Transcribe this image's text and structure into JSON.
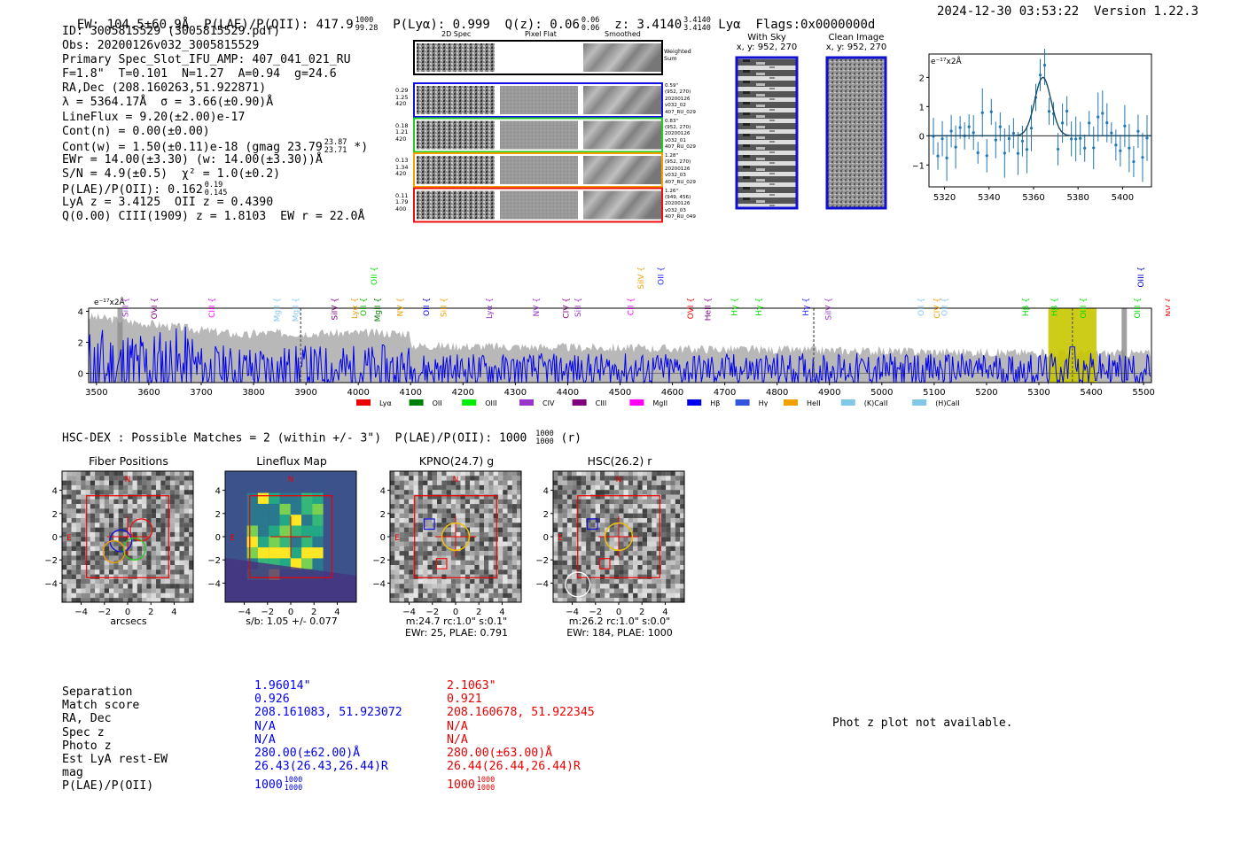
{
  "header": {
    "ew": "EW: 104.5±60.9Å",
    "plae_label": "P(LAE)/P(OII): 417.9",
    "plae_hi": "1000",
    "plae_lo": "99.28",
    "plya": "P(Lyα): 0.999",
    "qz_label": "Q(z): 0.06",
    "qz_hi": "0.06",
    "qz_lo": "0.06",
    "z_label": "z: 3.4140",
    "z_hi": "3.4140",
    "z_lo": "3.4140",
    "z_line": "Lyα",
    "flags": "Flags:0x0000000d",
    "timestamp": "2024-12-30 03:53:22",
    "version": "Version 1.22.3"
  },
  "info": {
    "id": "ID: 3005815529 (3005815529.pdf)",
    "obs": "Obs: 20200126v032_3005815529",
    "primary": "Primary Spec_Slot_IFU_AMP: 407_041_021_RU",
    "fparams": "F=1.8\"  T=0.101  N=1.27  A=0.94  g=24.6",
    "radec": "RA,Dec (208.160263,51.922871)",
    "lambda": "λ = 5364.17Å  σ = 3.66(±0.90)Å",
    "lineflux": "LineFlux = 9.20(±2.00)e-17",
    "contn": "Cont(n) = 0.00(±0.00)",
    "contw_a": "Cont(w) = 1.50(±0.11)e-18 (gmag 23.79",
    "contw_hi": "23.87",
    "contw_lo": "23.71",
    "contw_b": " *)",
    "ewr": "EWr = 14.00(±3.30) (w: 14.00(±3.30))Å",
    "sn": "S/N = 4.9(±0.5)  χ² = 1.0(±0.2)",
    "plae2": "P(LAE)/P(OII): 0.162",
    "plae2_hi": "0.19",
    "plae2_lo": "0.145",
    "lyaz": "LyA z = 3.4125  OII z = 0.4390",
    "q": "Q(0.00) CIII(1909) z = 1.8103  EW r = 22.0Å"
  },
  "cutouts": {
    "col_2d": "2D Spec",
    "col_flat": "Pixel Flat",
    "col_smooth": "Smoothed",
    "weighted": "Weighted Sum",
    "rows": [
      {
        "l1": "0.29",
        "l2": "1.25",
        "l3": "420",
        "r1": "0.59\"",
        "r2": "(952, 270)",
        "r3": "20200126",
        "r4": "v032_02",
        "r5": "407_RU_029",
        "color": "#1010e0"
      },
      {
        "l1": "0.18",
        "l2": "1.21",
        "l3": "420",
        "r1": "0.83\"",
        "r2": "(952, 270)",
        "r3": "20200126",
        "r4": "v032_01",
        "r5": "407_RU_029",
        "color": "#22cc22"
      },
      {
        "l1": "0.13",
        "l2": "1.34",
        "l3": "420",
        "r1": "1.28\"",
        "r2": "(952, 270)",
        "r3": "20200126",
        "r4": "v032_03",
        "r5": "407_RU_029",
        "color": "#f0a000"
      },
      {
        "l1": "0.11",
        "l2": "1.79",
        "l3": "400",
        "r1": "1.26\"",
        "r2": "(949, 456)",
        "r3": "20200126",
        "r4": "v032_03",
        "r5": "407_RU_049",
        "color": "#ee1010"
      }
    ]
  },
  "sky": {
    "with_sky_title": "With Sky",
    "with_sky_xy": "x, y: 952, 270",
    "clean_title": "Clean Image",
    "clean_xy": "x, y: 952, 270"
  },
  "zoom_plot": {
    "unit": "e⁻¹⁷x2Å",
    "xticks": [
      "5320",
      "5340",
      "5360",
      "5380",
      "5400"
    ],
    "yticks": [
      "2",
      "1",
      "0",
      "−1"
    ]
  },
  "spectrum": {
    "unit": "e⁻¹⁷x2Å",
    "yticks": [
      "4",
      "2",
      "0"
    ],
    "xticks": [
      "3500",
      "3600",
      "3700",
      "3800",
      "3900",
      "4000",
      "4100",
      "4200",
      "4300",
      "4400",
      "4500",
      "4600",
      "4700",
      "4800",
      "4900",
      "5000",
      "5100",
      "5200",
      "5300",
      "5400",
      "5500"
    ],
    "lines_upper": [
      {
        "name": "OII",
        "w": 4030,
        "color": "#00dd00"
      },
      {
        "name": "SiIV",
        "w": 4540,
        "color": "#f0a000"
      },
      {
        "name": "OII",
        "w": 4578,
        "color": "#2222ff"
      },
      {
        "name": "OIII",
        "w": 5495,
        "color": "#0000cc"
      }
    ],
    "lines_lower": [
      {
        "name": "SiII",
        "w": 3555,
        "color": "#9933cc"
      },
      {
        "name": "OVI",
        "w": 3610,
        "color": "#800080"
      },
      {
        "name": "CIII",
        "w": 3720,
        "color": "#ff00ff"
      },
      {
        "name": "MgII",
        "w": 3845,
        "color": "#80c8e8"
      },
      {
        "name": "MgII",
        "w": 3880,
        "color": "#80c8e8"
      },
      {
        "name": "SiIV",
        "w": 3955,
        "color": "#800080"
      },
      {
        "name": "Lyα",
        "w": 3993,
        "color": "#f0a000"
      },
      {
        "name": "OII",
        "w": 4010,
        "color": "#00bb00"
      },
      {
        "name": "MgII",
        "w": 4037,
        "color": "#008000"
      },
      {
        "name": "NV",
        "w": 4080,
        "color": "#f0a000"
      },
      {
        "name": "OII",
        "w": 4130,
        "color": "#0000ee"
      },
      {
        "name": "SiII",
        "w": 4163,
        "color": "#f0a000"
      },
      {
        "name": "Lyα",
        "w": 4250,
        "color": "#9933cc"
      },
      {
        "name": "NV",
        "w": 4340,
        "color": "#9933cc"
      },
      {
        "name": "CIV",
        "w": 4397,
        "color": "#800080"
      },
      {
        "name": "SiII",
        "w": 4420,
        "color": "#9933cc"
      },
      {
        "name": "CII",
        "w": 4520,
        "color": "#ff00ff"
      },
      {
        "name": "OVI",
        "w": 4635,
        "color": "#ee0000"
      },
      {
        "name": "HeII",
        "w": 4668,
        "color": "#800080"
      },
      {
        "name": "Hγ",
        "w": 4718,
        "color": "#00dd00"
      },
      {
        "name": "Hγ",
        "w": 4765,
        "color": "#00dd00"
      },
      {
        "name": "Hγ",
        "w": 4855,
        "color": "#2222ff"
      },
      {
        "name": "SiIV",
        "w": 4898,
        "color": "#9933cc"
      },
      {
        "name": "OII",
        "w": 5075,
        "color": "#80c8e8"
      },
      {
        "name": "CIV",
        "w": 5105,
        "color": "#f0a000"
      },
      {
        "name": "OII",
        "w": 5120,
        "color": "#80c8e8"
      },
      {
        "name": "Hβ",
        "w": 5275,
        "color": "#00dd00"
      },
      {
        "name": "Hβ",
        "w": 5330,
        "color": "#00dd00"
      },
      {
        "name": "OIII",
        "w": 5385,
        "color": "#00dd00"
      },
      {
        "name": "OIII",
        "w": 5488,
        "color": "#00dd00"
      },
      {
        "name": "NV",
        "w": 5548,
        "color": "#ee0000"
      }
    ],
    "legend": [
      {
        "label": "Lyα",
        "color": "#ee0000"
      },
      {
        "label": "OII",
        "color": "#008000"
      },
      {
        "label": "OIII",
        "color": "#00ee00"
      },
      {
        "label": "CIV",
        "color": "#9933cc"
      },
      {
        "label": "CIII",
        "color": "#800080"
      },
      {
        "label": "MgII",
        "color": "#ff00ff"
      },
      {
        "label": "Hβ",
        "color": "#0000ee"
      },
      {
        "label": "Hγ",
        "color": "#3355dd"
      },
      {
        "label": "HeII",
        "color": "#f0a000"
      },
      {
        "label": "(K)CaII",
        "color": "#80c8e8"
      },
      {
        "label": "(H)CaII",
        "color": "#80c8e8"
      }
    ]
  },
  "hsc": {
    "title": "HSC-DEX : Possible Matches = 2 (within +/- 3\")  P(LAE)/P(OII): 1000",
    "hi": "1000",
    "lo": "1000",
    "suffix": "(r)",
    "panels": [
      {
        "title": "Fiber Positions",
        "sub1": "arcsecs",
        "sub2": ""
      },
      {
        "title": "Lineflux Map",
        "sub1": "s/b: 1.05 +/- 0.077",
        "sub2": ""
      },
      {
        "title": "KPNO(24.7) g",
        "sub1": "m:24.7 rc:1.0\"  s:0.1\"",
        "sub2": "EWr: 25, PLAE: 0.791"
      },
      {
        "title": "HSC(26.2) r",
        "sub1": "m:26.2 rc:1.0\"  s:0.0\"",
        "sub2": "EWr: 184, PLAE: 1000"
      }
    ],
    "ticks": [
      "4",
      "2",
      "0",
      "−2",
      "−4"
    ],
    "xticks": [
      "−4",
      "−2",
      "0",
      "2",
      "4"
    ],
    "n_label": "N",
    "e_label": "E"
  },
  "matches": {
    "labels": [
      "Separation",
      "Match score",
      "RA, Dec",
      "Spec z",
      "Photo z",
      "Est LyA rest-EW",
      "mag",
      "P(LAE)/P(OII)"
    ],
    "m1": [
      "1.96014\"",
      "0.926",
      "208.161083, 51.923072",
      "N/A",
      "N/A",
      "280.00(±62.00)Å",
      "26.43(26.43,26.44)R",
      "1000"
    ],
    "m2": [
      "2.1063\"",
      "0.921",
      "208.160678, 51.922345",
      "N/A",
      "N/A",
      "280.00(±63.00)Å",
      "26.44(26.44,26.44)R",
      "1000"
    ],
    "plae_hi": "1000",
    "plae_lo": "1000",
    "photz": "Phot z plot not available."
  }
}
